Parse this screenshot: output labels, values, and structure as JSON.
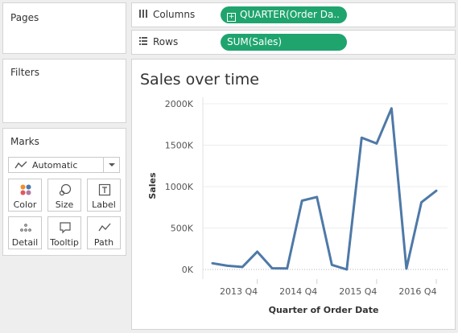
{
  "panes": {
    "pages_title": "Pages",
    "filters_title": "Filters",
    "marks_title": "Marks"
  },
  "shelves": {
    "columns_label": "Columns",
    "columns_pill": "QUARTER(Order Da..",
    "rows_label": "Rows",
    "rows_pill": "SUM(Sales)"
  },
  "marks": {
    "mark_type": "Automatic",
    "buttons": [
      {
        "label": "Color",
        "icon": "color-icon"
      },
      {
        "label": "Size",
        "icon": "size-icon"
      },
      {
        "label": "Label",
        "icon": "label-icon"
      },
      {
        "label": "Detail",
        "icon": "detail-icon"
      },
      {
        "label": "Tooltip",
        "icon": "tooltip-icon"
      },
      {
        "label": "Path",
        "icon": "path-icon"
      }
    ]
  },
  "colors": {
    "pill": "#1fa46e",
    "line": "#4e79a7"
  },
  "chart_data": {
    "type": "line",
    "title": "Sales over time",
    "xlabel": "Quarter of Order Date",
    "ylabel": "Sales",
    "x_tick_labels": [
      "2013 Q4",
      "2014 Q4",
      "2015 Q4",
      "2016 Q4"
    ],
    "x_tick_indices": [
      4,
      8,
      12,
      16
    ],
    "y_tick_labels": [
      "0K",
      "500K",
      "1000K",
      "1500K",
      "2000K"
    ],
    "y_ticks": [
      0,
      500,
      1000,
      1500,
      2000
    ],
    "ylim": [
      0,
      2000
    ],
    "y_unit": "K",
    "grid": true,
    "values": [
      75,
      45,
      30,
      215,
      15,
      12,
      830,
      875,
      55,
      0,
      1590,
      1520,
      1945,
      10,
      810,
      950
    ]
  }
}
